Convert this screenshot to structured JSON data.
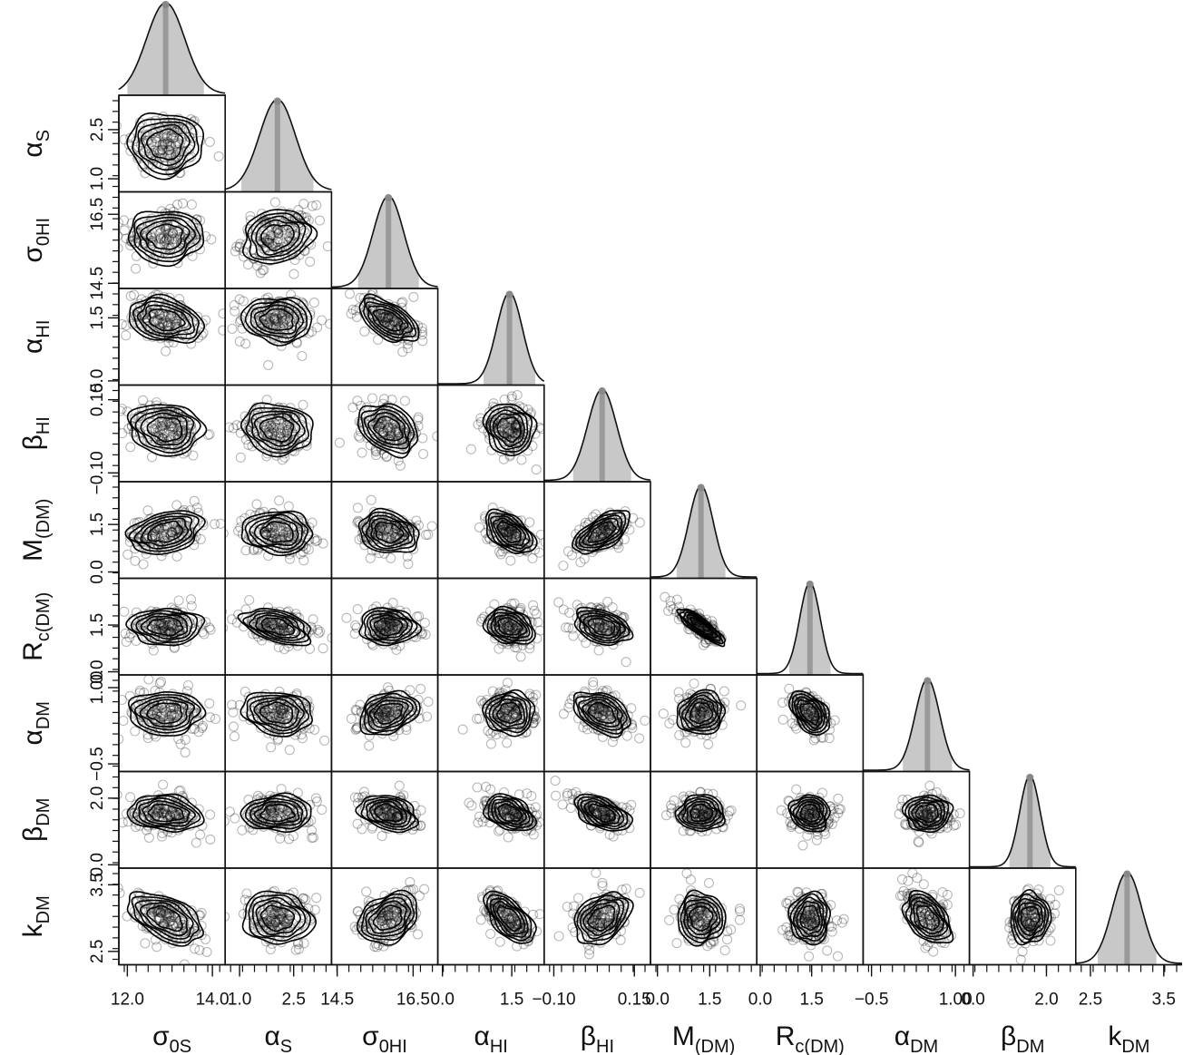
{
  "chart_data": {
    "type": "corner",
    "title": "",
    "description_marks": "posterior marginals (diagonal) and pairwise contours with samples (lower triangle)",
    "parameters": [
      {
        "id": "sigma0S",
        "label": "σ",
        "sub": "0S",
        "mean": 12.9,
        "sd": 0.45,
        "range": [
          11.8,
          14.3
        ],
        "ticks": [
          {
            "v": 12.0,
            "t": "12.0"
          },
          {
            "v": 14.0,
            "t": "14.0"
          }
        ]
      },
      {
        "id": "alphaS",
        "label": "α",
        "sub": "S",
        "mean": 2.05,
        "sd": 0.5,
        "range": [
          0.6,
          3.55
        ],
        "ticks": [
          {
            "v": 1.0,
            "t": "1.0"
          },
          {
            "v": 2.5,
            "t": "2.5"
          }
        ]
      },
      {
        "id": "sigma0HI",
        "label": "σ",
        "sub": "0HI",
        "mean": 15.85,
        "sd": 0.4,
        "range": [
          14.35,
          17.15
        ],
        "ticks": [
          {
            "v": 14.5,
            "t": "14.5"
          },
          {
            "v": 16.5,
            "t": "16.5"
          }
        ]
      },
      {
        "id": "alphaHI",
        "label": "α",
        "sub": "HI",
        "mean": 1.45,
        "sd": 0.28,
        "range": [
          -0.1,
          2.2
        ],
        "ticks": [
          {
            "v": 0.0,
            "t": "0.0"
          },
          {
            "v": 1.5,
            "t": "1.5"
          }
        ]
      },
      {
        "id": "betaHI",
        "label": "β",
        "sub": "HI",
        "mean": 0.05,
        "sd": 0.045,
        "range": [
          -0.13,
          0.2
        ],
        "ticks": [
          {
            "v": -0.1,
            "t": "−0.10"
          },
          {
            "v": 0.15,
            "t": "0.15"
          }
        ]
      },
      {
        "id": "MDM",
        "label": "M",
        "sub": "(DM)",
        "mean": 1.25,
        "sd": 0.35,
        "range": [
          -0.2,
          2.85
        ],
        "ticks": [
          {
            "v": 0.0,
            "t": "0.0"
          },
          {
            "v": 1.5,
            "t": "1.5"
          }
        ]
      },
      {
        "id": "RcDM",
        "label": "R",
        "sub": "c(DM)",
        "mean": 1.45,
        "sd": 0.3,
        "range": [
          -0.1,
          3.0
        ],
        "ticks": [
          {
            "v": 0.0,
            "t": "0.0"
          },
          {
            "v": 1.5,
            "t": "1.5"
          }
        ]
      },
      {
        "id": "alphaDM",
        "label": "α",
        "sub": "DM",
        "mean": 0.5,
        "sd": 0.22,
        "range": [
          -0.65,
          1.25
        ],
        "ticks": [
          {
            "v": -0.5,
            "t": "−0.5"
          },
          {
            "v": 1.0,
            "t": "1.00"
          }
        ]
      },
      {
        "id": "betaDM",
        "label": "β",
        "sub": "DM",
        "mean": 1.55,
        "sd": 0.28,
        "range": [
          -0.1,
          2.8
        ],
        "ticks": [
          {
            "v": 0.0,
            "t": "0.0"
          },
          {
            "v": 2.0,
            "t": "2.0"
          }
        ]
      },
      {
        "id": "kDM",
        "label": "k",
        "sub": "DM",
        "mean": 3.0,
        "sd": 0.2,
        "range": [
          2.3,
          3.75
        ],
        "ticks": [
          {
            "v": 2.5,
            "t": "2.5"
          },
          {
            "v": 3.5,
            "t": "3.5"
          }
        ]
      }
    ],
    "correlations": {
      "1,0": 0.0,
      "2,0": 0.0,
      "2,1": 0.15,
      "3,0": -0.25,
      "3,1": -0.05,
      "3,2": -0.55,
      "4,0": -0.1,
      "4,1": -0.1,
      "4,2": -0.3,
      "4,3": -0.1,
      "5,0": 0.3,
      "5,1": -0.05,
      "5,2": -0.2,
      "5,3": -0.5,
      "5,4": 0.6,
      "6,0": 0.0,
      "6,1": -0.45,
      "6,2": -0.05,
      "6,3": -0.25,
      "6,4": -0.35,
      "6,5": -0.85,
      "7,0": 0.0,
      "7,1": -0.15,
      "7,2": 0.3,
      "7,3": 0.0,
      "7,4": -0.4,
      "7,5": 0.1,
      "7,6": -0.45,
      "8,0": -0.15,
      "8,1": 0.05,
      "8,2": -0.3,
      "8,3": -0.35,
      "8,4": -0.5,
      "8,5": 0.0,
      "8,6": -0.1,
      "8,7": 0.0,
      "9,0": -0.5,
      "9,1": -0.1,
      "9,2": 0.3,
      "9,3": -0.6,
      "9,4": 0.35,
      "9,5": 0.0,
      "9,6": 0.0,
      "9,7": -0.45,
      "9,8": 0.05
    }
  }
}
